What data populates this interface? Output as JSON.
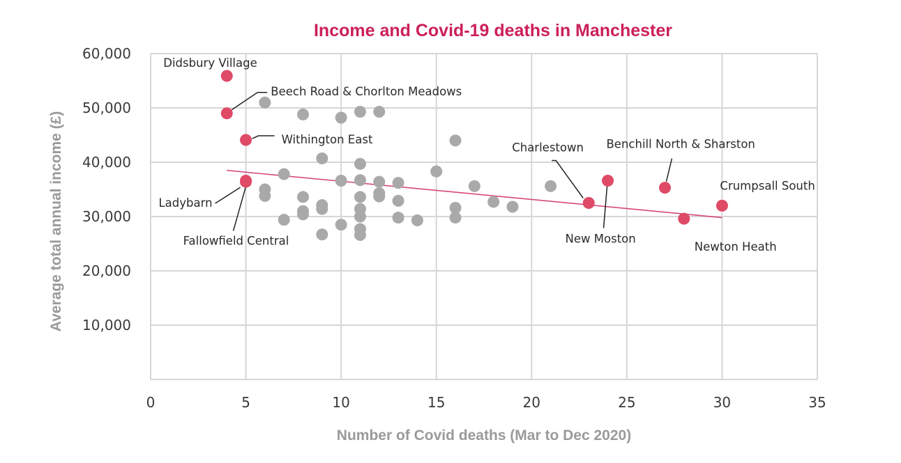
{
  "chart_data": {
    "type": "scatter",
    "title": "Income and Covid-19 deaths in Manchester",
    "xlabel": "Number of Covid deaths (Mar to Dec 2020)",
    "ylabel": "Average total annual income (£)",
    "xlim": [
      0,
      35
    ],
    "ylim": [
      0,
      60000
    ],
    "x_ticks": [
      0,
      5,
      10,
      15,
      20,
      25,
      30,
      35
    ],
    "x_tick_labels": [
      "0",
      "5",
      "10",
      "15",
      "20",
      "25",
      "30",
      "35"
    ],
    "y_ticks": [
      10000,
      20000,
      30000,
      40000,
      50000,
      60000
    ],
    "y_tick_labels": [
      "10,000",
      "20,000",
      "30,000",
      "40,000",
      "50,000",
      "60,000"
    ],
    "grid": true,
    "colors": {
      "title": "#cc1f5b",
      "highlight": "#df4a66",
      "other": "#a9a9a9",
      "trendline": "#d6477c",
      "axis_title": "#9a9a9a"
    },
    "series": [
      {
        "role": "other",
        "points": [
          {
            "x": 6,
            "y": 51000
          },
          {
            "x": 8,
            "y": 48800
          },
          {
            "x": 10,
            "y": 48200
          },
          {
            "x": 11,
            "y": 49300
          },
          {
            "x": 12,
            "y": 49300
          },
          {
            "x": 16,
            "y": 44000
          },
          {
            "x": 9,
            "y": 40700
          },
          {
            "x": 11,
            "y": 39700
          },
          {
            "x": 7,
            "y": 37800
          },
          {
            "x": 15,
            "y": 38300
          },
          {
            "x": 10,
            "y": 36600
          },
          {
            "x": 11,
            "y": 36700
          },
          {
            "x": 12,
            "y": 36400
          },
          {
            "x": 13,
            "y": 36200
          },
          {
            "x": 6,
            "y": 35000
          },
          {
            "x": 6,
            "y": 33800
          },
          {
            "x": 8,
            "y": 33600
          },
          {
            "x": 11,
            "y": 33600
          },
          {
            "x": 12,
            "y": 34300
          },
          {
            "x": 12,
            "y": 33700
          },
          {
            "x": 13,
            "y": 32900
          },
          {
            "x": 9,
            "y": 32100
          },
          {
            "x": 9,
            "y": 31400
          },
          {
            "x": 8,
            "y": 31000
          },
          {
            "x": 8,
            "y": 30400
          },
          {
            "x": 11,
            "y": 31400
          },
          {
            "x": 11,
            "y": 30000
          },
          {
            "x": 7,
            "y": 29400
          },
          {
            "x": 10,
            "y": 28500
          },
          {
            "x": 11,
            "y": 27700
          },
          {
            "x": 11,
            "y": 26600
          },
          {
            "x": 9,
            "y": 26700
          },
          {
            "x": 13,
            "y": 29800
          },
          {
            "x": 14,
            "y": 29300
          },
          {
            "x": 16,
            "y": 31600
          },
          {
            "x": 16,
            "y": 29800
          },
          {
            "x": 17,
            "y": 35600
          },
          {
            "x": 18,
            "y": 32700
          },
          {
            "x": 19,
            "y": 31800
          },
          {
            "x": 21,
            "y": 35600
          }
        ]
      },
      {
        "role": "highlight",
        "points": [
          {
            "x": 4,
            "y": 55900,
            "label": "Didsbury Village"
          },
          {
            "x": 4,
            "y": 49000,
            "label": "Beech Road & Chorlton Meadows"
          },
          {
            "x": 5,
            "y": 44100,
            "label": "Withington East"
          },
          {
            "x": 5,
            "y": 36400,
            "label": "Ladybarn"
          },
          {
            "x": 5,
            "y": 36600,
            "label": "Fallowfield Central"
          },
          {
            "x": 23,
            "y": 32500,
            "label": "Charlestown"
          },
          {
            "x": 24,
            "y": 36600,
            "label": "New Moston"
          },
          {
            "x": 27,
            "y": 35300,
            "label": "Benchill North & Sharston"
          },
          {
            "x": 28,
            "y": 29600,
            "label": "Newton Heath"
          },
          {
            "x": 30,
            "y": 32000,
            "label": "Crumpsall South"
          }
        ]
      }
    ],
    "trendline": {
      "x": [
        4,
        30
      ],
      "y": [
        38500,
        29800
      ]
    }
  }
}
